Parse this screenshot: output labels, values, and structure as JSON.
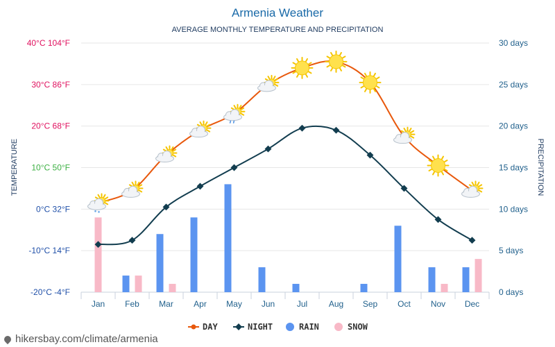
{
  "chart_data": {
    "type": "line",
    "title": "Armenia Weather",
    "subtitle": "AVERAGE MONTHLY TEMPERATURE AND PRECIPITATION",
    "ylabel_left": "TEMPERATURE",
    "ylabel_right": "PRECIPITATION",
    "categories": [
      "Jan",
      "Feb",
      "Mar",
      "Apr",
      "May",
      "Jun",
      "Jul",
      "Aug",
      "Sep",
      "Oct",
      "Nov",
      "Dec"
    ],
    "ylim_left": [
      -20,
      40
    ],
    "ylim_right": [
      0,
      30
    ],
    "left_ticks": [
      {
        "value": 40,
        "label": "40°C 104°F",
        "color": "#e0115f"
      },
      {
        "value": 30,
        "label": "30°C 86°F",
        "color": "#e0115f"
      },
      {
        "value": 20,
        "label": "20°C 68°F",
        "color": "#e0115f"
      },
      {
        "value": 10,
        "label": "10°C 50°F",
        "color": "#3cb043"
      },
      {
        "value": 0,
        "label": "0°C 32°F",
        "color": "#1f4fa8"
      },
      {
        "value": -10,
        "label": "-10°C 14°F",
        "color": "#1f4fa8"
      },
      {
        "value": -20,
        "label": "-20°C -4°F",
        "color": "#1f4fa8"
      }
    ],
    "right_ticks": [
      {
        "value": 30,
        "label": "30 days"
      },
      {
        "value": 25,
        "label": "25 days"
      },
      {
        "value": 20,
        "label": "20 days"
      },
      {
        "value": 15,
        "label": "15 days"
      },
      {
        "value": 10,
        "label": "10 days"
      },
      {
        "value": 5,
        "label": "5 days"
      },
      {
        "value": 0,
        "label": "0 days"
      }
    ],
    "series": [
      {
        "name": "DAY",
        "kind": "line",
        "color": "#e8580c",
        "values": [
          1.5,
          4.5,
          13,
          19,
          23,
          30,
          34,
          35.5,
          30.5,
          17.5,
          10.5,
          4.5
        ]
      },
      {
        "name": "NIGHT",
        "kind": "line",
        "color": "#123d4f",
        "values": [
          -8.5,
          -7.5,
          0.5,
          5.5,
          10,
          14.5,
          19.5,
          19,
          13,
          5,
          -2.5,
          -7.5
        ]
      },
      {
        "name": "RAIN",
        "kind": "bar",
        "color": "#5b94f0",
        "values": [
          0,
          2,
          7,
          9,
          13,
          3,
          1,
          0,
          1,
          8,
          3,
          3
        ]
      },
      {
        "name": "SNOW",
        "kind": "bar",
        "color": "#f8b9c7",
        "values": [
          9,
          2,
          1,
          0,
          0,
          0,
          0,
          0,
          0,
          0,
          1,
          4
        ]
      }
    ],
    "weather_icons": [
      "cloud-sun-snow-icon",
      "cloud-sun-icon",
      "cloud-sun-icon",
      "cloud-sun-icon",
      "cloud-sun-rain-icon",
      "cloud-sun-icon",
      "sun-icon",
      "sun-icon",
      "sun-icon",
      "cloud-sun-icon",
      "sun-icon",
      "cloud-sun-icon"
    ],
    "legend_position": "bottom-center",
    "grid": true
  },
  "colors": {
    "title": "#1a6aa8",
    "subtitle": "#1e3a5f",
    "axis_text": "#1f5f8b",
    "grid": "#e6e6e6"
  },
  "footer": {
    "text": "hikersbay.com/climate/armenia"
  }
}
